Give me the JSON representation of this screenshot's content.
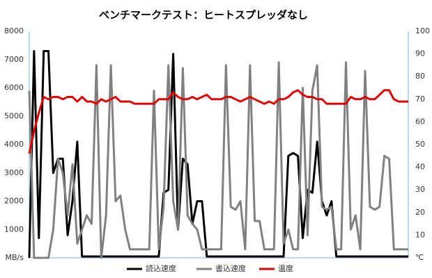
{
  "chart_data": {
    "type": "line",
    "title": "ベンチマークテスト：ヒートスプレッダなし",
    "categories": [
      null,
      null,
      null,
      null,
      null,
      null,
      null,
      null,
      null,
      null,
      null,
      null,
      null,
      null,
      null,
      null,
      null,
      null,
      null,
      null,
      null,
      null,
      null,
      null,
      null,
      null,
      null,
      null,
      null,
      null,
      null,
      null,
      null,
      null,
      null,
      null,
      null,
      null,
      null,
      null,
      null,
      null,
      null,
      null,
      null,
      null,
      null,
      null,
      null,
      null,
      null,
      null,
      null,
      null,
      null,
      null,
      null,
      null,
      null,
      null,
      null,
      null,
      null,
      null,
      null,
      null,
      null,
      null,
      null,
      null,
      null,
      null,
      null,
      null,
      null,
      null,
      null,
      null,
      null,
      null
    ],
    "ylim": [
      0,
      8000
    ],
    "yticks": [
      {
        "value": 0,
        "label": "MB/s"
      },
      1000,
      2000,
      3000,
      4000,
      5000,
      6000,
      7000,
      8000
    ],
    "y2lim": [
      0,
      100
    ],
    "y2ticks": [
      {
        "value": 0,
        "label": "℃"
      },
      10,
      20,
      30,
      40,
      50,
      60,
      70,
      80,
      90,
      100
    ],
    "legend": "bottom",
    "series": [
      {
        "name": "読込速度",
        "color": "#000000",
        "values": [
          0,
          7300,
          700,
          7300,
          7300,
          3000,
          3500,
          3500,
          800,
          2000,
          4100,
          50,
          50,
          50,
          50,
          50,
          50,
          50,
          50,
          50,
          50,
          50,
          50,
          50,
          50,
          50,
          50,
          50,
          2300,
          2400,
          7200,
          1000,
          3500,
          3300,
          1200,
          2000,
          2000,
          50,
          50,
          50,
          50,
          50,
          50,
          50,
          50,
          50,
          50,
          50,
          50,
          50,
          50,
          50,
          50,
          50,
          3600,
          3700,
          3600,
          700,
          2400,
          2300,
          4100,
          2000,
          1500,
          2000,
          50,
          50,
          50,
          50,
          50,
          50,
          50,
          50,
          50,
          50,
          50,
          50,
          50,
          50,
          50,
          50
        ]
      },
      {
        "name": "書込速度",
        "color": "#808080",
        "values": [
          5900,
          0,
          0,
          0,
          0,
          1000,
          3500,
          3000,
          1500,
          3300,
          500,
          1000,
          1500,
          1200,
          6800,
          0,
          1500,
          6800,
          2000,
          2200,
          1000,
          300,
          300,
          300,
          300,
          300,
          5900,
          300,
          1800,
          6800,
          2000,
          1000,
          6700,
          1500,
          1200,
          1000,
          300,
          300,
          300,
          300,
          300,
          6800,
          1800,
          1700,
          2000,
          300,
          6800,
          1300,
          1300,
          300,
          300,
          300,
          6900,
          500,
          1000,
          300,
          300,
          6000,
          800,
          5900,
          6800,
          1800,
          1700,
          1800,
          300,
          300,
          6900,
          1000,
          1500,
          300,
          6600,
          1800,
          1700,
          1800,
          3600,
          3500,
          300,
          300,
          300,
          300
        ]
      },
      {
        "name": "温度",
        "color": "#e00000",
        "axis": "y2",
        "values": [
          46,
          56,
          64,
          71,
          70,
          71,
          71,
          70,
          71,
          71,
          69,
          71,
          69,
          69,
          68,
          70,
          69,
          70,
          71,
          69,
          69,
          69,
          68,
          68,
          68,
          68,
          68,
          70,
          70,
          70,
          73,
          71,
          70,
          70,
          71,
          70,
          71,
          72,
          70,
          70,
          70,
          71,
          71,
          70,
          69,
          70,
          71,
          70,
          69,
          68,
          69,
          68,
          70,
          70,
          71,
          73,
          74,
          72,
          71,
          71,
          70,
          70,
          68,
          68,
          68,
          68,
          68,
          71,
          70,
          70,
          71,
          70,
          70,
          72,
          74,
          74,
          70,
          69,
          69,
          69
        ]
      }
    ]
  }
}
